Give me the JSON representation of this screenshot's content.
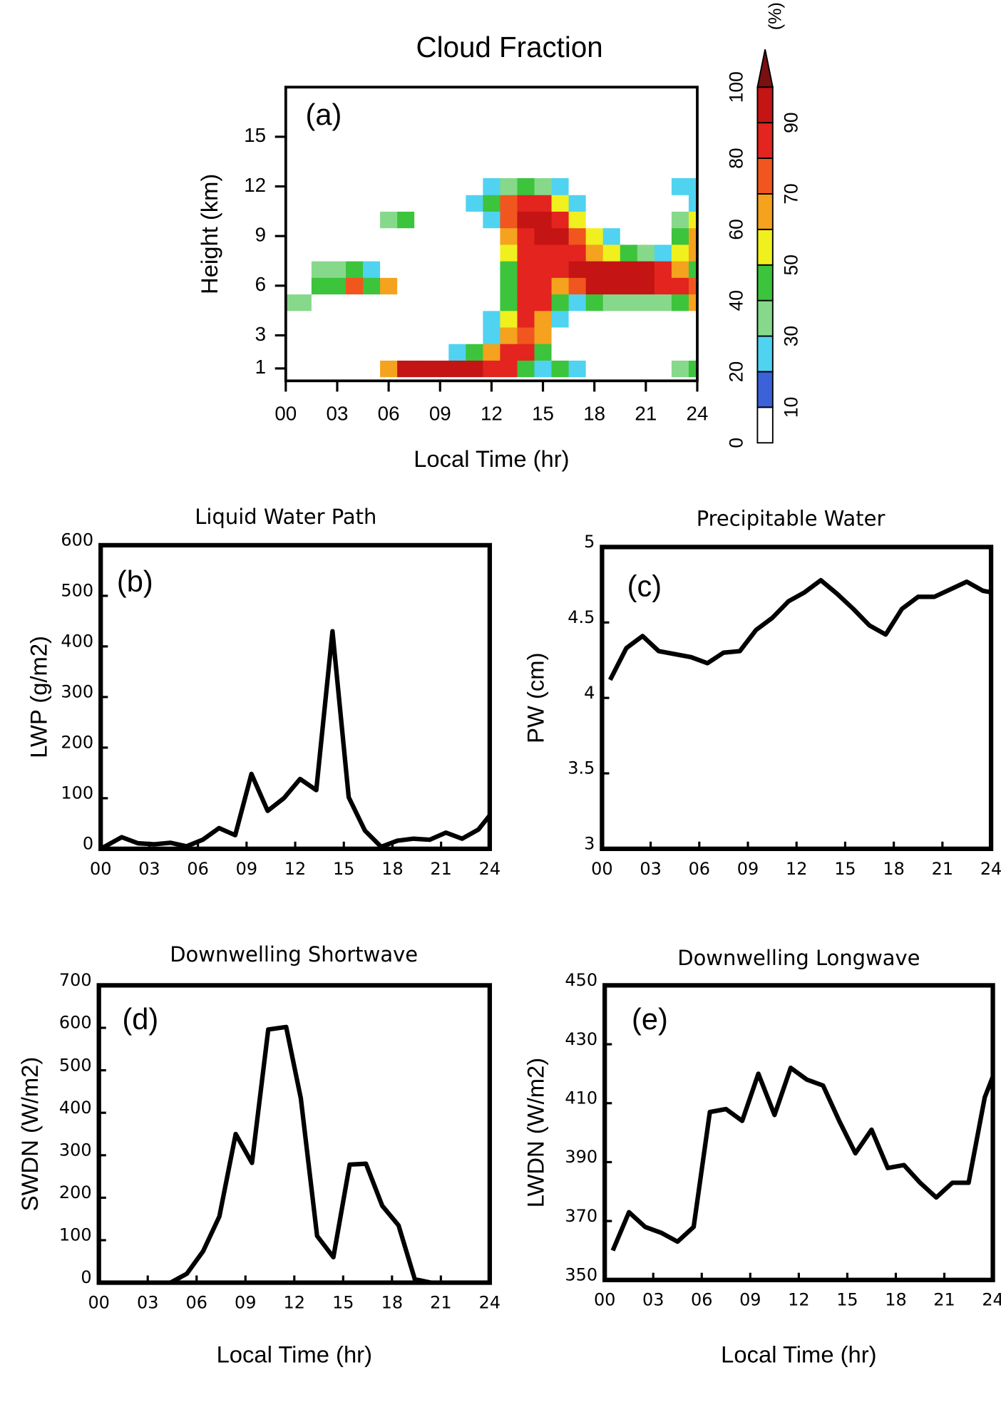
{
  "chart_data": [
    {
      "type": "contour",
      "title": "Cloud Fraction",
      "label": "(a)",
      "xlabel": "Local Time (hr)",
      "ylabel": "Height (km)",
      "xlim": [
        0,
        24
      ],
      "ylim": [
        0.25,
        18
      ],
      "xticks": [
        {
          "value": 0,
          "label": "00"
        },
        {
          "value": 3,
          "label": "03"
        },
        {
          "value": 6,
          "label": "06"
        },
        {
          "value": 9,
          "label": "09"
        },
        12,
        15,
        18,
        21,
        24
      ],
      "yticks": [
        1,
        3,
        6,
        9,
        12,
        15
      ],
      "x": [
        0,
        1,
        2,
        3,
        4,
        5,
        6,
        7,
        8,
        9,
        10,
        11,
        12,
        13,
        14,
        15,
        16,
        17,
        18,
        19,
        20,
        21,
        22,
        23,
        24
      ],
      "y": [
        1,
        2,
        3,
        4,
        5,
        6,
        7,
        8,
        9,
        10,
        11,
        12
      ],
      "z": [
        [
          0,
          0,
          0,
          0,
          0,
          0,
          60,
          90,
          90,
          90,
          90,
          90,
          85,
          80,
          40,
          20,
          40,
          20,
          0,
          0,
          0,
          0,
          0,
          30,
          40
        ],
        [
          0,
          0,
          0,
          0,
          0,
          0,
          0,
          0,
          0,
          0,
          20,
          40,
          60,
          80,
          80,
          40,
          0,
          0,
          0,
          0,
          0,
          0,
          0,
          0,
          0
        ],
        [
          0,
          0,
          0,
          0,
          0,
          0,
          0,
          0,
          0,
          0,
          0,
          0,
          20,
          60,
          70,
          60,
          0,
          0,
          0,
          0,
          0,
          0,
          0,
          0,
          0
        ],
        [
          0,
          0,
          0,
          0,
          0,
          0,
          0,
          0,
          0,
          0,
          0,
          0,
          20,
          50,
          80,
          60,
          20,
          0,
          0,
          0,
          0,
          0,
          0,
          0,
          0
        ],
        [
          30,
          30,
          0,
          0,
          0,
          0,
          0,
          0,
          0,
          0,
          0,
          0,
          0,
          40,
          80,
          80,
          40,
          20,
          40,
          30,
          30,
          30,
          30,
          40,
          60
        ],
        [
          0,
          0,
          40,
          40,
          70,
          40,
          60,
          0,
          0,
          0,
          0,
          0,
          0,
          40,
          80,
          80,
          60,
          70,
          90,
          90,
          90,
          90,
          80,
          80,
          70
        ],
        [
          0,
          0,
          30,
          30,
          40,
          20,
          0,
          0,
          0,
          0,
          0,
          0,
          0,
          40,
          80,
          80,
          80,
          90,
          90,
          90,
          90,
          90,
          80,
          60,
          40
        ],
        [
          0,
          0,
          0,
          0,
          0,
          0,
          0,
          0,
          0,
          0,
          0,
          0,
          0,
          50,
          80,
          80,
          80,
          80,
          60,
          50,
          40,
          30,
          20,
          50,
          60
        ],
        [
          0,
          0,
          0,
          0,
          0,
          0,
          0,
          0,
          0,
          0,
          0,
          0,
          0,
          60,
          80,
          90,
          90,
          70,
          50,
          20,
          0,
          0,
          0,
          40,
          60
        ],
        [
          0,
          0,
          0,
          0,
          0,
          0,
          30,
          40,
          0,
          0,
          0,
          0,
          20,
          70,
          90,
          90,
          80,
          50,
          0,
          0,
          0,
          0,
          0,
          30,
          50
        ],
        [
          0,
          0,
          0,
          0,
          0,
          0,
          0,
          0,
          0,
          0,
          0,
          20,
          40,
          70,
          80,
          80,
          50,
          20,
          0,
          0,
          0,
          0,
          0,
          0,
          20
        ],
        [
          0,
          0,
          0,
          0,
          0,
          0,
          0,
          0,
          0,
          0,
          0,
          0,
          20,
          30,
          40,
          30,
          20,
          0,
          0,
          0,
          0,
          0,
          0,
          20,
          20
        ]
      ],
      "colorbar": {
        "label": "(%)",
        "levels": [
          0,
          10,
          20,
          30,
          40,
          50,
          60,
          70,
          80,
          90,
          100
        ],
        "colors": [
          "#ffffff",
          "#3b62d8",
          "#4fd3f0",
          "#86d98a",
          "#3cc43c",
          "#f0f01e",
          "#f5a21e",
          "#f1561f",
          "#e3241f",
          "#c41414"
        ],
        "extend_color": "#7a1010",
        "ticks": [
          0,
          10,
          20,
          30,
          40,
          50,
          60,
          70,
          80,
          90,
          100
        ]
      }
    },
    {
      "type": "line",
      "title": "Liquid Water Path",
      "label": "(b)",
      "ylabel": "LWP (g/m2)",
      "color": "#000000",
      "xlim": [
        0,
        24
      ],
      "ylim": [
        0,
        600
      ],
      "xticks": [
        {
          "value": 0,
          "label": "00"
        },
        {
          "value": 3,
          "label": "03"
        },
        {
          "value": 6,
          "label": "06"
        },
        {
          "value": 9,
          "label": "09"
        },
        12,
        15,
        18,
        21,
        24
      ],
      "yticks": [
        0,
        100,
        200,
        300,
        400,
        500,
        600
      ],
      "x": [
        0,
        1.3,
        2.3,
        3.3,
        4.3,
        5.3,
        6.3,
        7.3,
        8.3,
        9.3,
        10.3,
        11.3,
        12.3,
        13.3,
        14.3,
        15.3,
        16.3,
        17.3,
        18.3,
        19.3,
        20.3,
        21.3,
        22.3,
        23.3,
        24
      ],
      "values": [
        0,
        23,
        11,
        9,
        12,
        5,
        18,
        41,
        27,
        148,
        75,
        100,
        138,
        116,
        430,
        102,
        36,
        4,
        16,
        20,
        18,
        32,
        20,
        38,
        66
      ]
    },
    {
      "type": "line",
      "title": "Precipitable Water",
      "label": "(c)",
      "ylabel": "PW (cm)",
      "color": "#000000",
      "xlim": [
        0,
        24
      ],
      "ylim": [
        3,
        5
      ],
      "xticks": [
        {
          "value": 0,
          "label": "00"
        },
        {
          "value": 3,
          "label": "03"
        },
        {
          "value": 6,
          "label": "06"
        },
        {
          "value": 9,
          "label": "09"
        },
        12,
        15,
        18,
        21,
        24
      ],
      "yticks": [
        3,
        3.5,
        4,
        4.5,
        5
      ],
      "x": [
        0.5,
        1.5,
        2.5,
        3.5,
        4.5,
        5.5,
        6.5,
        7.5,
        8.5,
        9.5,
        10.5,
        11.5,
        12.5,
        13.5,
        14.5,
        15.5,
        16.5,
        17.5,
        18.5,
        19.5,
        20.5,
        21.5,
        22.5,
        23.5,
        24
      ],
      "values": [
        4.12,
        4.33,
        4.41,
        4.31,
        4.29,
        4.27,
        4.23,
        4.3,
        4.31,
        4.45,
        4.53,
        4.64,
        4.7,
        4.78,
        4.69,
        4.59,
        4.48,
        4.42,
        4.59,
        4.67,
        4.67,
        4.72,
        4.77,
        4.71,
        4.7
      ]
    },
    {
      "type": "line",
      "title": "Downwelling Shortwave",
      "label": "(d)",
      "xlabel": "Local Time (hr)",
      "ylabel": "SWDN (W/m2)",
      "color": "#000000",
      "xlim": [
        0,
        24
      ],
      "ylim": [
        0,
        700
      ],
      "xticks": [
        {
          "value": 0,
          "label": "00"
        },
        {
          "value": 3,
          "label": "03"
        },
        {
          "value": 6,
          "label": "06"
        },
        {
          "value": 9,
          "label": "09"
        },
        12,
        15,
        18,
        21,
        24
      ],
      "yticks": [
        0,
        100,
        200,
        300,
        400,
        500,
        600,
        700
      ],
      "x": [
        4.4,
        5.4,
        6.4,
        7.4,
        8.4,
        9.4,
        10.4,
        11.5,
        12.4,
        13.4,
        14.4,
        15.4,
        16.4,
        17.4,
        18.4,
        19.4,
        20.4
      ],
      "values": [
        0,
        21,
        74,
        156,
        350,
        282,
        596,
        602,
        434,
        110,
        60,
        278,
        280,
        181,
        135,
        8,
        0
      ]
    },
    {
      "type": "line",
      "title": "Downwelling Longwave",
      "label": "(e)",
      "xlabel": "Local Time (hr)",
      "ylabel": "LWDN (W/m2)",
      "color": "#000000",
      "xlim": [
        0,
        24
      ],
      "ylim": [
        350,
        450
      ],
      "xticks": [
        {
          "value": 0,
          "label": "00"
        },
        {
          "value": 3,
          "label": "03"
        },
        {
          "value": 6,
          "label": "06"
        },
        {
          "value": 9,
          "label": "09"
        },
        12,
        15,
        18,
        21,
        24
      ],
      "yticks": [
        350,
        370,
        390,
        410,
        430,
        450
      ],
      "x": [
        0.5,
        1.5,
        2.5,
        3.5,
        4.5,
        5.5,
        6.5,
        7.5,
        8.5,
        9.5,
        10.5,
        11.5,
        12.5,
        13.5,
        14.5,
        15.5,
        16.5,
        17.5,
        18.5,
        19.5,
        20.5,
        21.5,
        22.5,
        23.5,
        24
      ],
      "values": [
        360,
        373,
        368,
        366,
        363,
        368,
        407,
        408,
        404,
        420,
        406,
        422,
        418,
        416,
        404,
        393,
        401,
        388,
        389,
        383,
        378,
        383,
        383,
        412,
        419
      ]
    }
  ]
}
